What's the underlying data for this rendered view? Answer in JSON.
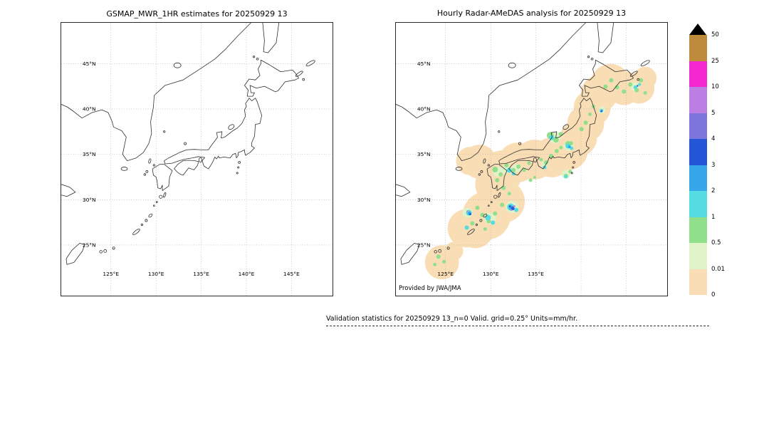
{
  "panels": [
    {
      "id": "gsmap",
      "title": "GSMAP_MWR_1HR estimates for 20250929 13",
      "lat_labels": [
        "45°N",
        "40°N",
        "35°N",
        "30°N",
        "25°N"
      ],
      "lon_labels": [
        "125°E",
        "130°E",
        "135°E",
        "140°E",
        "145°E"
      ],
      "credit": ""
    },
    {
      "id": "radar",
      "title": "Hourly Radar-AMeDAS analysis for 20250929 13",
      "lat_labels": [
        "45°N",
        "40°N",
        "35°N",
        "30°N",
        "25°N"
      ],
      "lon_labels": [
        "125°E",
        "130°E",
        "135°E"
      ],
      "credit": "Provided by JWA/JMA"
    }
  ],
  "colorbar": {
    "tick_labels": [
      "50",
      "25",
      "10",
      "5",
      "4",
      "3",
      "2",
      "1",
      "0.5",
      "0.01",
      "0"
    ],
    "segment_colors_top_to_bottom": [
      "#bd8b3b",
      "#f428cf",
      "#bd7ee3",
      "#7d74dc",
      "#2457d8",
      "#36a7e8",
      "#55dbe2",
      "#8fdf8b",
      "#dff2c8",
      "#f9ddb5"
    ],
    "overflow_color": "#000000"
  },
  "footer": {
    "text": "Validation statistics for 20250929 13_n=0 Valid. grid=0.25° Units=mm/hr."
  },
  "precip_overlay": {
    "palette": {
      "band": "#f9ddb5",
      "pg": "#dff2c8",
      "g": "#8fdf8b",
      "cyan": "#55dbe2",
      "lblue": "#36a7e8",
      "blue": "#2457d8",
      "purple": "#bd7ee3"
    },
    "blobs": [
      [
        65,
        338,
        24,
        "band"
      ],
      [
        82,
        322,
        13,
        "band"
      ],
      [
        105,
        195,
        20,
        "band"
      ],
      [
        118,
        196,
        24,
        "band"
      ],
      [
        100,
        290,
        27,
        "band"
      ],
      [
        112,
        292,
        26,
        "band"
      ],
      [
        128,
        272,
        34,
        "band"
      ],
      [
        152,
        252,
        30,
        "band"
      ],
      [
        140,
        228,
        28,
        "band"
      ],
      [
        150,
        210,
        30,
        "band"
      ],
      [
        172,
        197,
        28,
        "band"
      ],
      [
        196,
        193,
        28,
        "band"
      ],
      [
        220,
        190,
        28,
        "band"
      ],
      [
        243,
        180,
        28,
        "band"
      ],
      [
        258,
        162,
        26,
        "band"
      ],
      [
        268,
        142,
        26,
        "band"
      ],
      [
        277,
        120,
        26,
        "band"
      ],
      [
        287,
        100,
        26,
        "band"
      ],
      [
        303,
        86,
        28,
        "band"
      ],
      [
        322,
        92,
        24,
        "band"
      ],
      [
        343,
        92,
        22,
        "band"
      ],
      [
        352,
        78,
        16,
        "band"
      ],
      [
        144,
        210,
        7,
        "pg"
      ],
      [
        155,
        207,
        6,
        "pg"
      ],
      [
        170,
        205,
        6,
        "pg"
      ],
      [
        210,
        200,
        5,
        "pg"
      ],
      [
        224,
        162,
        8,
        "pg"
      ],
      [
        244,
        174,
        7,
        "pg"
      ],
      [
        133,
        276,
        8,
        "pg"
      ],
      [
        164,
        260,
        9,
        "pg"
      ],
      [
        101,
        268,
        7,
        "pg"
      ],
      [
        240,
        214,
        6,
        "pg"
      ],
      [
        337,
        90,
        6,
        "pg"
      ],
      [
        291,
        123,
        5,
        "pg"
      ],
      [
        140,
        207,
        4,
        "g"
      ],
      [
        148,
        214,
        3,
        "g"
      ],
      [
        156,
        201,
        3,
        "g"
      ],
      [
        143,
        222,
        3,
        "g"
      ],
      [
        152,
        233,
        3,
        "g"
      ],
      [
        160,
        241,
        2.5,
        "g"
      ],
      [
        166,
        208,
        3,
        "g"
      ],
      [
        173,
        203,
        3,
        "g"
      ],
      [
        181,
        208,
        2.5,
        "g"
      ],
      [
        188,
        198,
        2.5,
        "g"
      ],
      [
        205,
        193,
        2.5,
        "g"
      ],
      [
        212,
        197,
        3,
        "g"
      ],
      [
        219,
        188,
        3,
        "g"
      ],
      [
        227,
        181,
        3,
        "g"
      ],
      [
        233,
        176,
        2.5,
        "g"
      ],
      [
        247,
        170,
        3,
        "g"
      ],
      [
        240,
        216,
        3,
        "g"
      ],
      [
        246,
        210,
        2.5,
        "g"
      ],
      [
        262,
        150,
        3,
        "g"
      ],
      [
        268,
        141,
        3,
        "g"
      ],
      [
        274,
        129,
        2.5,
        "g"
      ],
      [
        279,
        118,
        2.5,
        "g"
      ],
      [
        296,
        90,
        3,
        "g"
      ],
      [
        304,
        81,
        3,
        "g"
      ],
      [
        312,
        91,
        3,
        "g"
      ],
      [
        322,
        97,
        3,
        "g"
      ],
      [
        331,
        87,
        3,
        "g"
      ],
      [
        340,
        95,
        3,
        "g"
      ],
      [
        346,
        81,
        3,
        "g"
      ],
      [
        352,
        99,
        2.5,
        "g"
      ],
      [
        115,
        261,
        3,
        "g"
      ],
      [
        122,
        271,
        3,
        "g"
      ],
      [
        131,
        280,
        3,
        "g"
      ],
      [
        140,
        269,
        3,
        "g"
      ],
      [
        108,
        283,
        3,
        "g"
      ],
      [
        126,
        291,
        2.5,
        "g"
      ],
      [
        150,
        257,
        3,
        "g"
      ],
      [
        60,
        330,
        3,
        "g"
      ],
      [
        68,
        337,
        2.5,
        "g"
      ],
      [
        55,
        341,
        2.5,
        "g"
      ],
      [
        218,
        159,
        5,
        "g"
      ],
      [
        226,
        165,
        4,
        "g"
      ],
      [
        233,
        157,
        3,
        "g"
      ],
      [
        243,
        171,
        4,
        "g"
      ],
      [
        190,
        222,
        2.5,
        "g"
      ],
      [
        196,
        218,
        2,
        "g"
      ],
      [
        160,
        208,
        3.5,
        "cyan"
      ],
      [
        166,
        213,
        2.5,
        "cyan"
      ],
      [
        220,
        162,
        3.5,
        "cyan"
      ],
      [
        243,
        174,
        3.5,
        "cyan"
      ],
      [
        248,
        177,
        2.5,
        "cyan"
      ],
      [
        290,
        124,
        2.5,
        "cyan"
      ],
      [
        130,
        275,
        4,
        "cyan"
      ],
      [
        137,
        282,
        3,
        "cyan"
      ],
      [
        100,
        289,
        3,
        "cyan"
      ],
      [
        162,
        260,
        5,
        "cyan"
      ],
      [
        170,
        264,
        3,
        "cyan"
      ],
      [
        103,
        268,
        4,
        "cyan"
      ],
      [
        338,
        91,
        2.5,
        "cyan"
      ],
      [
        344,
        87,
        2,
        "cyan"
      ],
      [
        240,
        217,
        2.5,
        "cyan"
      ],
      [
        210,
        204,
        2.5,
        "cyan"
      ],
      [
        163,
        261,
        3,
        "lblue"
      ],
      [
        104,
        269,
        2.5,
        "lblue"
      ],
      [
        245,
        175,
        2,
        "lblue"
      ],
      [
        291,
        124,
        1.5,
        "lblue"
      ],
      [
        165,
        262,
        2.5,
        "blue"
      ],
      [
        161,
        259,
        1.5,
        "blue"
      ],
      [
        105,
        270,
        1.5,
        "blue"
      ],
      [
        290,
        125,
        1.2,
        "blue"
      ],
      [
        341,
        89,
        1.2,
        "blue"
      ],
      [
        167,
        259,
        1.5,
        "purple"
      ],
      [
        163,
        264,
        1.3,
        "purple"
      ],
      [
        101,
        266,
        1.2,
        "purple"
      ]
    ]
  }
}
